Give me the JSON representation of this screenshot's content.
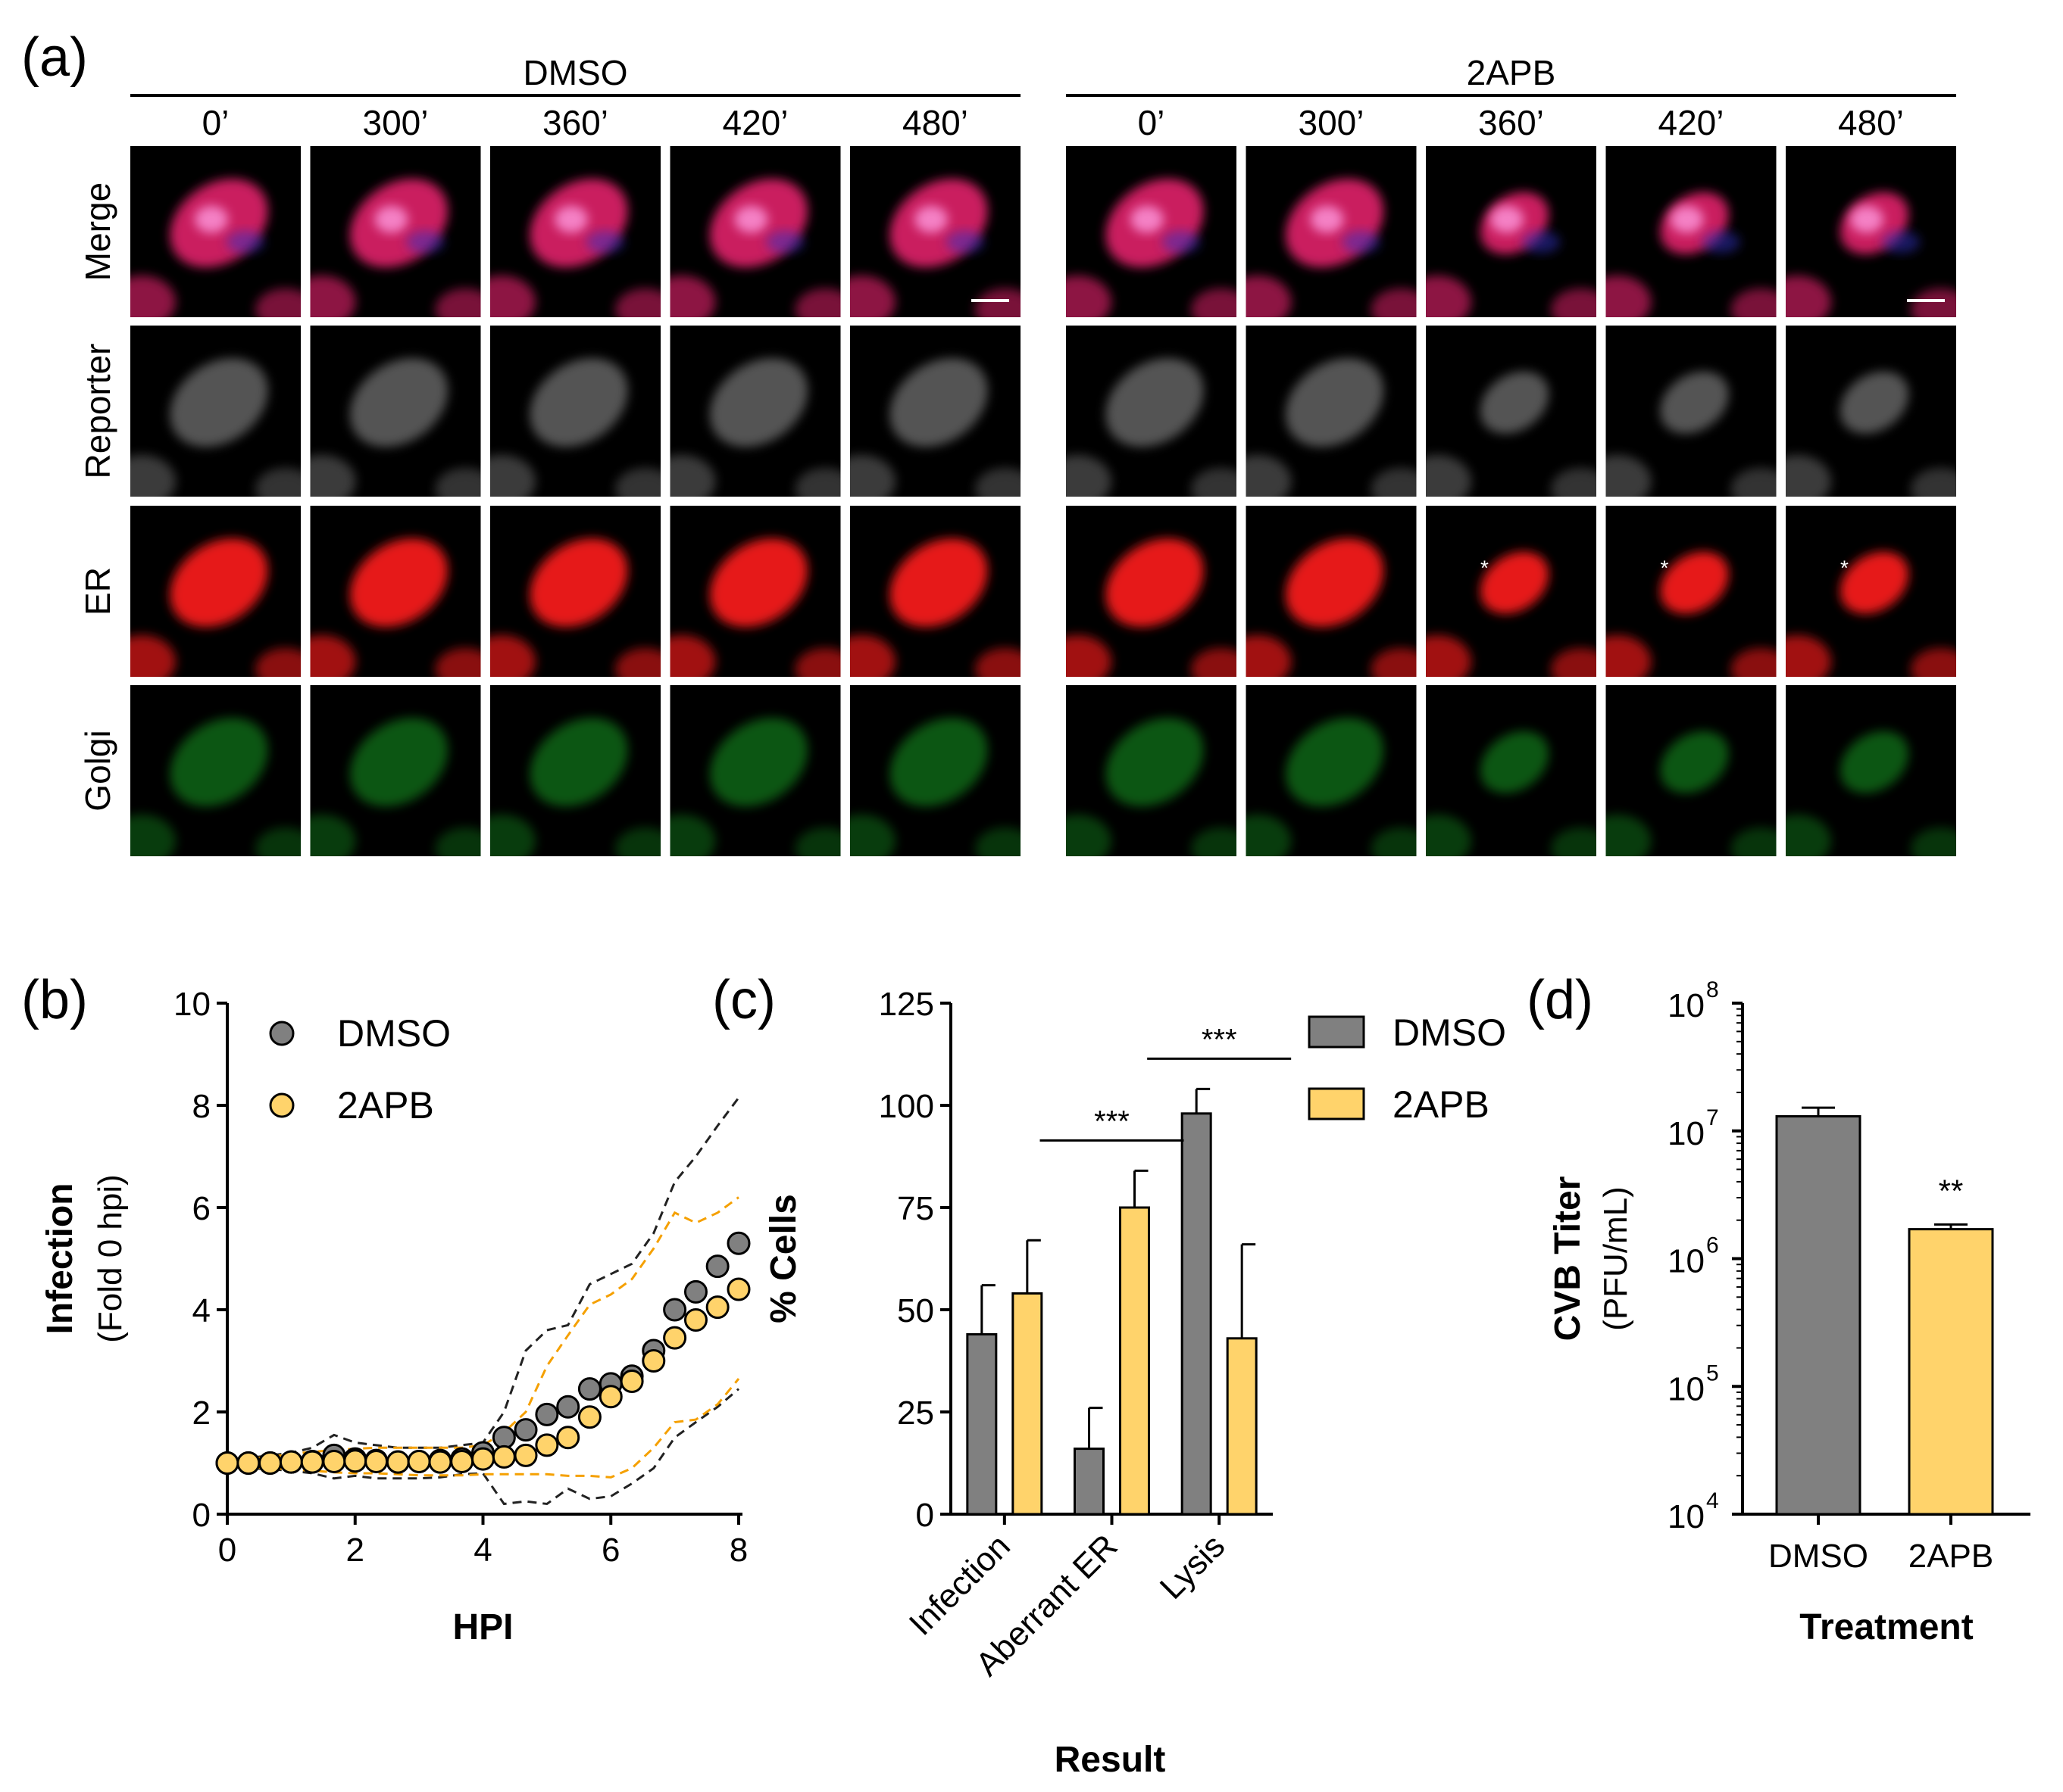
{
  "panel_a": {
    "label": "(a)",
    "groups": [
      {
        "name": "DMSO",
        "times": [
          "0’",
          "300’",
          "360’",
          "420’",
          "480’"
        ]
      },
      {
        "name": "2APB",
        "times": [
          "0’",
          "300’",
          "360’",
          "420’",
          "480’"
        ]
      }
    ],
    "rows": [
      {
        "name": "Merge",
        "kind": "merge"
      },
      {
        "name": "Reporter",
        "kind": "reporter"
      },
      {
        "name": "ER",
        "kind": "er"
      },
      {
        "name": "Golgi",
        "kind": "golgi"
      }
    ],
    "colors": {
      "merge_cell": "#e0206a",
      "reporter": "#9a9a9a",
      "er": "#ff1a1a",
      "golgi": "#1fbf2a",
      "tile_bg": "#000000",
      "annotation": "#ffffff"
    },
    "annotation_symbol": "*"
  },
  "chart_data": [
    {
      "panel": "(b)",
      "type": "scatter",
      "ylabel": "Infection",
      "ylabel_sub": "(Fold 0 hpi)",
      "xlabel": "HPI",
      "xlim": [
        0,
        8
      ],
      "ylim": [
        0,
        10
      ],
      "xticks": [
        0,
        2,
        4,
        6,
        8
      ],
      "yticks": [
        0,
        2,
        4,
        6,
        8,
        10
      ],
      "legend": [
        "DMSO",
        "2APB"
      ],
      "series": [
        {
          "name": "DMSO",
          "color": "#808080",
          "x": [
            0,
            0.33,
            0.67,
            1,
            1.33,
            1.67,
            2,
            2.33,
            2.67,
            3,
            3.33,
            3.67,
            4,
            4.33,
            4.67,
            5,
            5.33,
            5.67,
            6,
            6.33,
            6.67,
            7,
            7.33,
            7.67,
            8
          ],
          "y": [
            1.0,
            1.0,
            1.0,
            1.02,
            1.03,
            1.15,
            1.08,
            1.05,
            1.02,
            1.03,
            1.05,
            1.08,
            1.2,
            1.5,
            1.65,
            1.95,
            2.1,
            2.45,
            2.55,
            2.7,
            3.2,
            4.0,
            4.35,
            4.85,
            5.3
          ],
          "upper": [
            1.05,
            1.1,
            1.15,
            1.2,
            1.3,
            1.55,
            1.4,
            1.35,
            1.3,
            1.3,
            1.3,
            1.35,
            1.4,
            2.0,
            3.2,
            3.6,
            3.7,
            4.5,
            4.7,
            4.9,
            5.5,
            6.5,
            7.0,
            7.6,
            8.15
          ],
          "lower": [
            0.95,
            0.9,
            0.88,
            0.85,
            0.8,
            0.7,
            0.75,
            0.7,
            0.7,
            0.7,
            0.72,
            0.78,
            0.8,
            0.2,
            0.25,
            0.2,
            0.5,
            0.3,
            0.35,
            0.6,
            0.9,
            1.5,
            1.8,
            2.1,
            2.45
          ]
        },
        {
          "name": "2APB",
          "color": "#ffd36b",
          "x": [
            0,
            0.33,
            0.67,
            1,
            1.33,
            1.67,
            2,
            2.33,
            2.67,
            3,
            3.33,
            3.67,
            4,
            4.33,
            4.67,
            5,
            5.33,
            5.67,
            6,
            6.33,
            6.67,
            7,
            7.33,
            7.67,
            8
          ],
          "y": [
            1.0,
            1.0,
            1.0,
            1.02,
            1.02,
            1.03,
            1.04,
            1.03,
            1.02,
            1.03,
            1.02,
            1.03,
            1.08,
            1.12,
            1.15,
            1.35,
            1.5,
            1.9,
            2.3,
            2.6,
            3.0,
            3.45,
            3.8,
            4.05,
            4.4
          ],
          "upper": [
            1.05,
            1.08,
            1.12,
            1.18,
            1.22,
            1.25,
            1.28,
            1.3,
            1.3,
            1.3,
            1.3,
            1.3,
            1.35,
            1.6,
            2.0,
            2.9,
            3.5,
            4.1,
            4.3,
            4.6,
            5.2,
            5.9,
            5.7,
            5.9,
            6.2
          ],
          "lower": [
            0.95,
            0.92,
            0.9,
            0.88,
            0.85,
            0.82,
            0.8,
            0.8,
            0.78,
            0.76,
            0.76,
            0.76,
            0.78,
            0.78,
            0.78,
            0.78,
            0.75,
            0.75,
            0.72,
            0.9,
            1.3,
            1.8,
            1.85,
            2.15,
            2.65
          ]
        }
      ]
    },
    {
      "panel": "(c)",
      "type": "bar",
      "ylabel": "% Cells",
      "xlabel": "Result",
      "ylim": [
        0,
        125
      ],
      "yticks": [
        0,
        25,
        50,
        75,
        100,
        125
      ],
      "categories": [
        "Infection",
        "Aberrant ER",
        "Lysis"
      ],
      "legend": [
        "DMSO",
        "2APB"
      ],
      "series": [
        {
          "name": "DMSO",
          "color": "#808080",
          "values": [
            44,
            16,
            98
          ],
          "errors": [
            12,
            10,
            6
          ]
        },
        {
          "name": "2APB",
          "color": "#ffd36b",
          "values": [
            54,
            75,
            43
          ],
          "errors": [
            13,
            9,
            23
          ]
        }
      ],
      "significance": [
        {
          "category": "Aberrant ER",
          "label": "***"
        },
        {
          "category": "Lysis",
          "label": "***"
        }
      ]
    },
    {
      "panel": "(d)",
      "type": "bar",
      "scale": "log",
      "ylabel": "CVB Titer",
      "ylabel_sub": "(PFU/mL)",
      "xlabel": "Treatment",
      "ylim": [
        10000,
        100000000
      ],
      "yticks": [
        {
          "base": "10",
          "exp": "4"
        },
        {
          "base": "10",
          "exp": "5"
        },
        {
          "base": "10",
          "exp": "6"
        },
        {
          "base": "10",
          "exp": "7"
        },
        {
          "base": "10",
          "exp": "8"
        }
      ],
      "categories": [
        "DMSO",
        "2APB"
      ],
      "values": [
        13000000,
        1700000
      ],
      "errors": [
        2200000,
        150000
      ],
      "colors": [
        "#808080",
        "#ffd36b"
      ],
      "significance": [
        {
          "category": "2APB",
          "label": "**"
        }
      ]
    }
  ]
}
